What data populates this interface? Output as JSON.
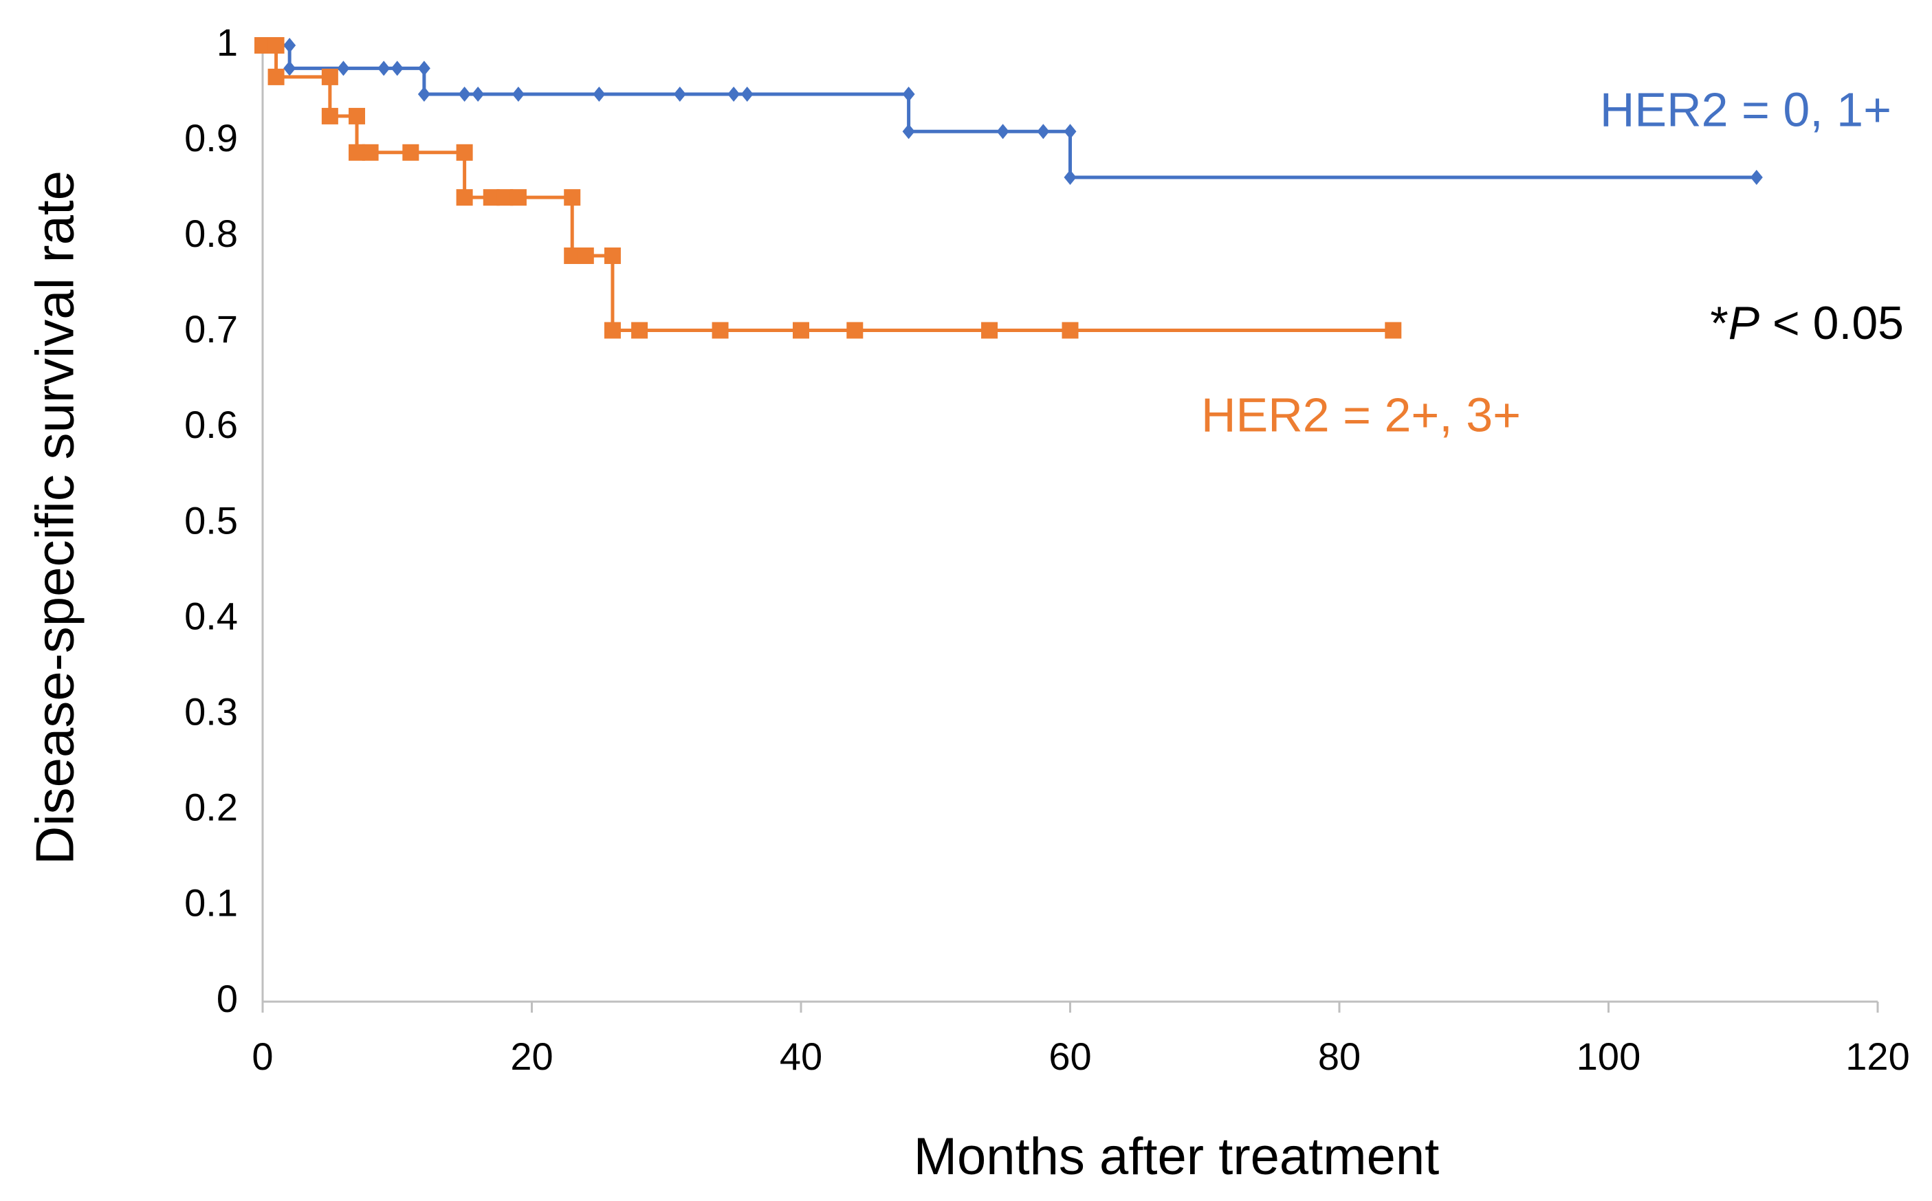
{
  "chart_data": {
    "type": "line",
    "y_label": "Disease-specific survival rate",
    "x_label": "Months after treatment",
    "annotation": [
      "*",
      "P",
      " < 0.05"
    ],
    "xlim": [
      0,
      120
    ],
    "xticks": [
      0,
      20,
      40,
      60,
      80,
      100,
      120
    ],
    "ylim": [
      0,
      1
    ],
    "yticks": [
      0,
      0.1,
      0.2,
      0.3,
      0.4,
      0.5,
      0.6,
      0.7,
      0.8,
      0.9,
      1
    ],
    "grid": false,
    "series": [
      {
        "name": "HER2 = 0, 1+",
        "color": "#4472c4",
        "marker": "diamond",
        "x": [
          0,
          1,
          2,
          2,
          6,
          9,
          10,
          12,
          12,
          15,
          16,
          19,
          25,
          31,
          35,
          36,
          48,
          48,
          55,
          58,
          60,
          60,
          111
        ],
        "values": [
          1,
          1,
          1,
          0.976,
          0.976,
          0.976,
          0.976,
          0.976,
          0.949,
          0.949,
          0.949,
          0.949,
          0.949,
          0.949,
          0.949,
          0.949,
          0.949,
          0.91,
          0.91,
          0.91,
          0.91,
          0.862,
          0.862
        ]
      },
      {
        "name": "HER2 = 2+, 3+",
        "color": "#ed7d31",
        "marker": "square",
        "x": [
          0,
          1,
          1,
          5,
          5,
          7,
          7,
          8,
          11,
          15,
          15,
          17,
          18,
          19,
          23,
          23,
          24,
          26,
          26,
          28,
          34,
          40,
          44,
          54,
          60,
          84
        ],
        "values": [
          1,
          1,
          0.967,
          0.967,
          0.926,
          0.926,
          0.888,
          0.888,
          0.888,
          0.888,
          0.841,
          0.841,
          0.841,
          0.841,
          0.841,
          0.78,
          0.78,
          0.78,
          0.702,
          0.702,
          0.702,
          0.702,
          0.702,
          0.702,
          0.702,
          0.702
        ]
      }
    ]
  }
}
